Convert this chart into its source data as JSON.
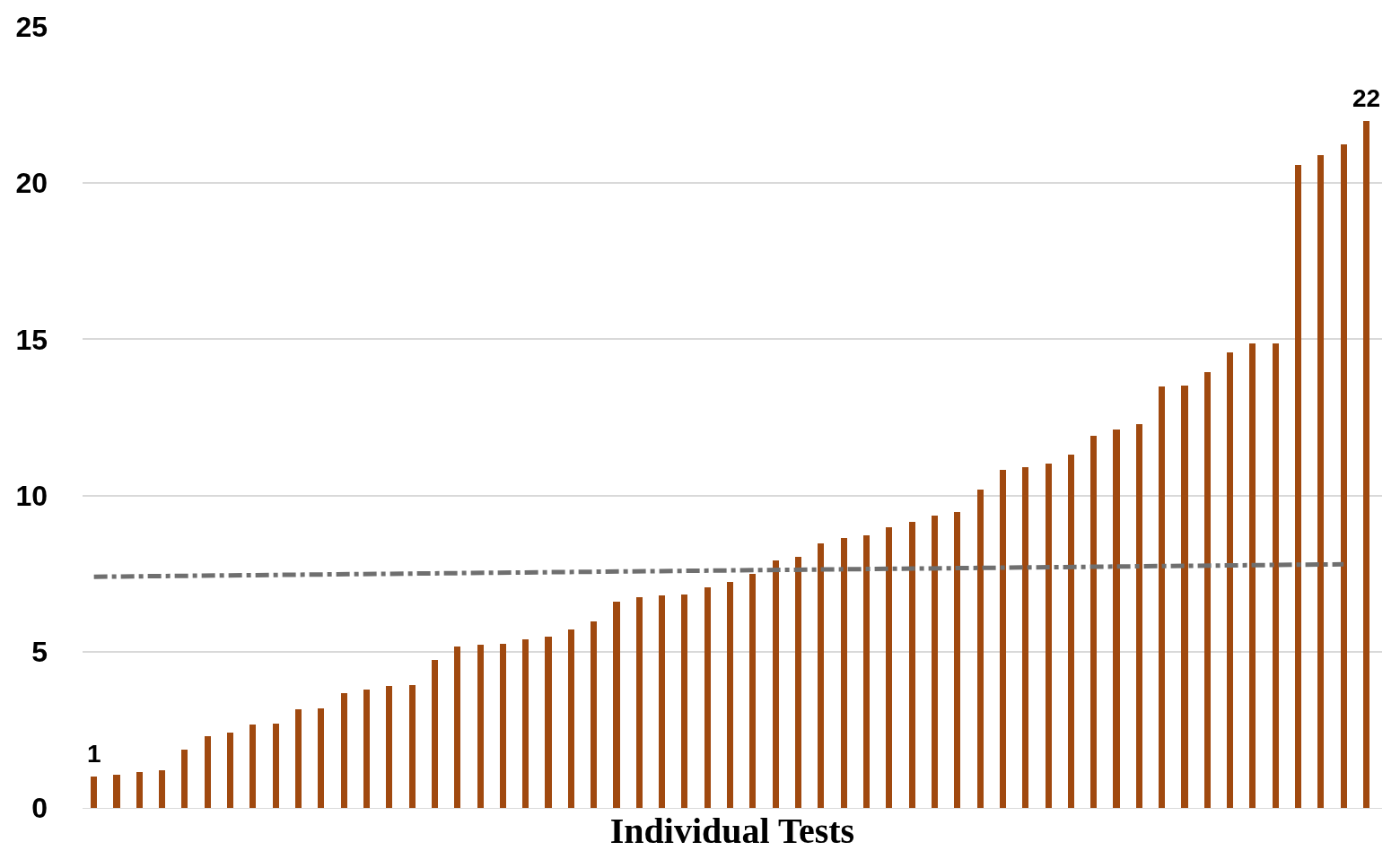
{
  "chart_data": {
    "type": "bar",
    "xlabel": "Individual Tests",
    "categories": [
      null,
      null,
      null,
      null,
      null,
      null,
      null,
      null,
      null,
      null,
      null,
      null,
      null,
      null,
      null,
      null,
      null,
      null,
      null,
      null,
      null,
      null,
      null,
      null,
      null,
      null,
      null,
      null,
      null,
      null,
      null,
      null,
      null,
      null,
      null,
      null,
      null,
      null,
      null,
      null,
      null,
      null,
      null,
      null,
      null,
      null,
      null,
      null,
      null,
      null,
      null,
      null,
      null,
      null,
      null,
      null,
      null
    ],
    "series": [
      {
        "color": "#a0490f",
        "values": [
          1,
          1.05,
          1.16,
          1.22,
          1.87,
          2.3,
          2.41,
          2.67,
          2.7,
          3.15,
          3.2,
          3.66,
          3.8,
          3.89,
          3.94,
          4.74,
          5.16,
          5.22,
          5.25,
          5.39,
          5.48,
          5.7,
          5.96,
          6.61,
          6.75,
          6.81,
          6.84,
          7.07,
          7.24,
          7.49,
          7.92,
          8.03,
          8.46,
          8.65,
          8.74,
          8.97,
          9.17,
          9.36,
          9.48,
          10.19,
          10.81,
          10.9,
          11.01,
          11.32,
          11.92,
          12.12,
          12.29,
          13.48,
          13.51,
          13.96,
          14.59,
          14.87,
          14.87,
          20.57,
          20.89,
          21.25,
          22
        ],
        "value_labels": [
          "1",
          null,
          null,
          null,
          null,
          null,
          null,
          null,
          null,
          null,
          null,
          null,
          null,
          null,
          null,
          null,
          null,
          null,
          null,
          null,
          null,
          null,
          null,
          null,
          null,
          null,
          null,
          null,
          null,
          null,
          null,
          null,
          null,
          null,
          null,
          null,
          null,
          null,
          null,
          null,
          null,
          null,
          null,
          null,
          null,
          null,
          null,
          null,
          null,
          null,
          null,
          null,
          null,
          null,
          null,
          null,
          "22"
        ]
      },
      {
        "type": "line",
        "color": "#6f6f6f",
        "line_style": "dashed",
        "values": [
          7.4,
          null,
          null,
          null,
          null,
          null,
          null,
          null,
          null,
          null,
          null,
          null,
          null,
          null,
          null,
          null,
          null,
          null,
          null,
          null,
          null,
          null,
          null,
          null,
          null,
          null,
          null,
          null,
          null,
          null,
          null,
          null,
          null,
          null,
          null,
          null,
          null,
          null,
          null,
          null,
          null,
          null,
          null,
          null,
          null,
          null,
          null,
          null,
          null,
          null,
          null,
          null,
          null,
          null,
          null,
          7.8,
          null
        ]
      }
    ],
    "ylim": [
      0,
      25
    ],
    "yticks": [
      0,
      5,
      10,
      15,
      20,
      25
    ],
    "grid": "y"
  }
}
